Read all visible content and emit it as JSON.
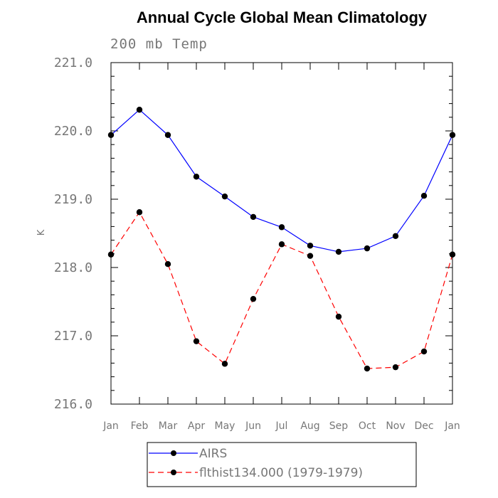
{
  "chart_data": {
    "type": "line",
    "title": "Annual Cycle Global Mean Climatology",
    "subtitle": "200 mb Temp",
    "ylabel": "K",
    "xlabel": "",
    "ylim": [
      216.0,
      221.0
    ],
    "y_ticks": [
      "216.0",
      "217.0",
      "218.0",
      "219.0",
      "220.0",
      "221.0"
    ],
    "categories": [
      "Jan",
      "Feb",
      "Mar",
      "Apr",
      "May",
      "Jun",
      "Jul",
      "Aug",
      "Sep",
      "Oct",
      "Nov",
      "Dec",
      "Jan"
    ],
    "grid": false,
    "legend_position": "bottom-center",
    "series": [
      {
        "name": "AIRS",
        "color": "#0000ff",
        "line_style": "solid",
        "marker": "filled-circle",
        "values": [
          219.94,
          220.31,
          219.94,
          219.33,
          219.04,
          218.74,
          218.59,
          218.32,
          218.23,
          218.28,
          218.46,
          219.05,
          219.94
        ]
      },
      {
        "name": "flthist134.000 (1979-1979)",
        "color": "#ff0000",
        "line_style": "dashed",
        "marker": "filled-circle",
        "values": [
          218.19,
          218.81,
          218.05,
          216.92,
          216.59,
          217.54,
          218.34,
          218.17,
          217.28,
          216.52,
          216.54,
          216.77,
          218.19
        ]
      }
    ]
  }
}
